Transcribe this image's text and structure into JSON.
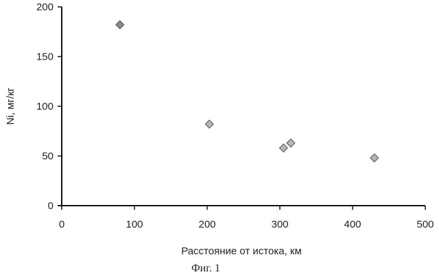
{
  "chart_data": {
    "type": "scatter",
    "xlabel": "Расстояние от истока, км",
    "ylabel": "Ni, мг/кг",
    "caption": "Фиг. 1",
    "xlim": [
      0,
      500
    ],
    "ylim": [
      0,
      200
    ],
    "x_ticks": [
      "0",
      "100",
      "200",
      "300",
      "400",
      "500"
    ],
    "y_ticks": [
      "0",
      "50",
      "100",
      "150",
      "200"
    ],
    "grid": false,
    "marker": "diamond",
    "points": [
      {
        "x": 80,
        "y": 182
      },
      {
        "x": 203,
        "y": 82
      },
      {
        "x": 305,
        "y": 58
      },
      {
        "x": 315,
        "y": 63
      },
      {
        "x": 430,
        "y": 48
      }
    ],
    "colors": {
      "axis": "#111111",
      "first_point": "#8a8a8a",
      "other_points": "#b5b5b5",
      "marker_stroke": "#555555"
    }
  }
}
